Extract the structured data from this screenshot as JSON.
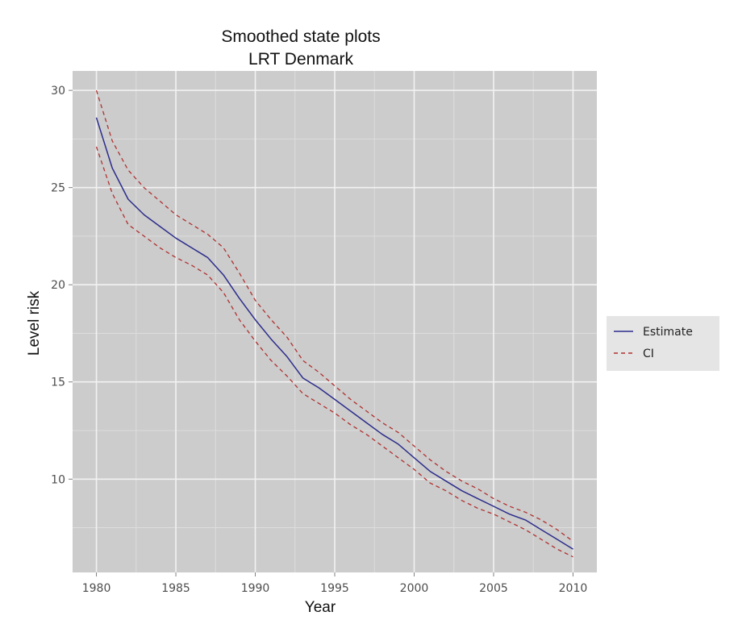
{
  "chart_data": {
    "type": "line",
    "title": "Smoothed state plots",
    "subtitle": "LRT Denmark",
    "xlabel": "Year",
    "ylabel": "Level risk",
    "xlim": [
      1978.5,
      2011.5
    ],
    "ylim": [
      5.2,
      31.0
    ],
    "x_ticks": [
      1980,
      1985,
      1990,
      1995,
      2000,
      2005,
      2010
    ],
    "x_tick_labels": [
      "1980",
      "1985",
      "1990",
      "1995",
      "2000",
      "2005",
      "2010"
    ],
    "y_ticks": [
      10,
      15,
      20,
      25,
      30
    ],
    "y_tick_labels": [
      "10",
      "15",
      "20",
      "25",
      "30"
    ],
    "grid": true,
    "legend_position": "right",
    "x": [
      1980,
      1981,
      1982,
      1983,
      1984,
      1985,
      1986,
      1987,
      1988,
      1989,
      1990,
      1991,
      1992,
      1993,
      1994,
      1995,
      1996,
      1997,
      1998,
      1999,
      2000,
      2001,
      2002,
      2003,
      2004,
      2005,
      2006,
      2007,
      2008,
      2009,
      2010
    ],
    "series": [
      {
        "name": "Estimate",
        "style": "solid",
        "color": "#2c2c8c",
        "values": [
          28.6,
          26.0,
          24.4,
          23.6,
          23.0,
          22.4,
          21.9,
          21.4,
          20.5,
          19.3,
          18.2,
          17.2,
          16.3,
          15.2,
          14.7,
          14.1,
          13.5,
          12.9,
          12.3,
          11.8,
          11.1,
          10.4,
          9.9,
          9.4,
          9.0,
          8.6,
          8.2,
          7.9,
          7.4,
          6.9,
          6.4
        ]
      },
      {
        "name": "CI",
        "style": "dashed",
        "color": "#b03030",
        "values": [
          30.0,
          27.4,
          25.9,
          25.0,
          24.3,
          23.6,
          23.1,
          22.6,
          21.9,
          20.6,
          19.2,
          18.2,
          17.3,
          16.1,
          15.5,
          14.8,
          14.1,
          13.5,
          12.9,
          12.4,
          11.7,
          11.0,
          10.4,
          9.9,
          9.5,
          9.0,
          8.6,
          8.3,
          7.9,
          7.4,
          6.8
        ]
      },
      {
        "name": "CI",
        "style": "dashed",
        "color": "#b03030",
        "values": [
          27.1,
          24.7,
          23.1,
          22.5,
          21.9,
          21.4,
          21.0,
          20.5,
          19.6,
          18.2,
          17.1,
          16.1,
          15.3,
          14.4,
          13.9,
          13.4,
          12.8,
          12.3,
          11.7,
          11.1,
          10.5,
          9.8,
          9.4,
          8.9,
          8.5,
          8.2,
          7.8,
          7.4,
          6.9,
          6.4,
          6.0
        ]
      }
    ],
    "legend": [
      {
        "label": "Estimate",
        "style": "solid",
        "color": "#2c2c8c"
      },
      {
        "label": "CI",
        "style": "dashed",
        "color": "#b03030"
      }
    ],
    "colors": {
      "panel_bg": "#cccccc",
      "legend_bg": "#e5e5e5",
      "grid_major": "#f2f2f2",
      "grid_minor": "#dddddd"
    }
  }
}
